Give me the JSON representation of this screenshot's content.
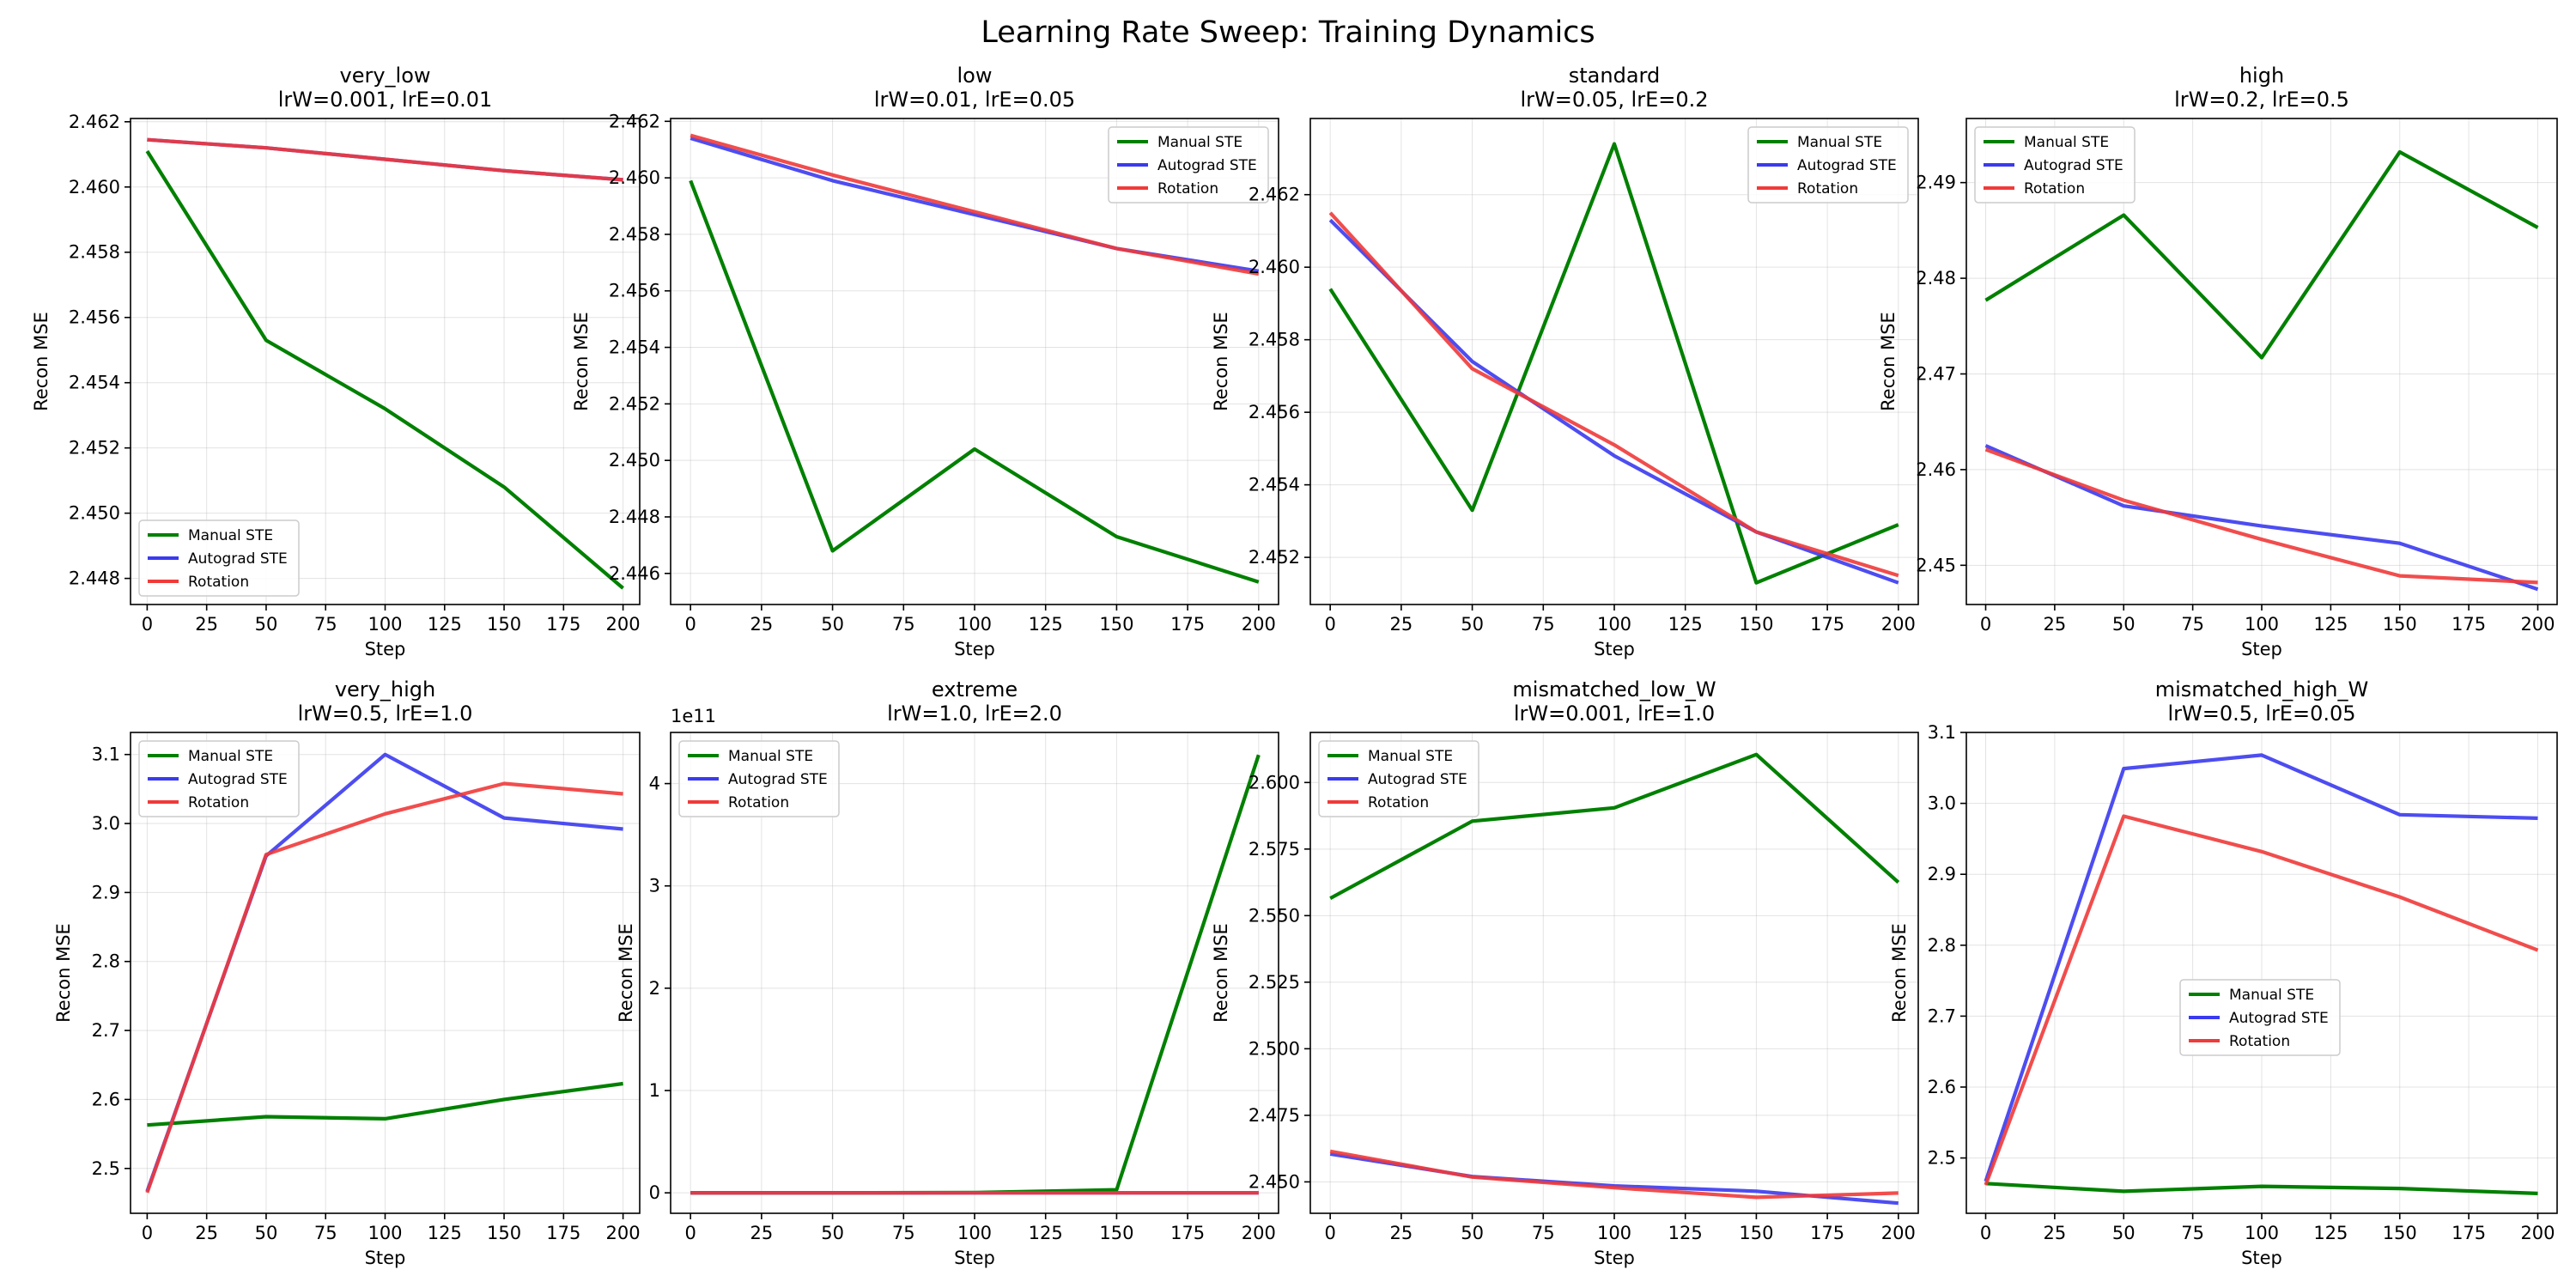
{
  "figure": {
    "title": "Learning Rate Sweep: Training Dynamics"
  },
  "colors": {
    "Manual STE": "#008000",
    "Autograd STE": "#3a3af0",
    "Rotation": "#f03a3a"
  },
  "chart_data": [
    {
      "type": "line",
      "title": "very_low",
      "subtitle": "lrW=0.001, lrE=0.01",
      "xlabel": "Step",
      "ylabel": "Recon MSE",
      "x": [
        0,
        50,
        100,
        150,
        200
      ],
      "xlim": [
        -7,
        207
      ],
      "ylim": [
        2.4472,
        2.4621
      ],
      "xticks": [
        0,
        25,
        50,
        75,
        100,
        125,
        150,
        175,
        200
      ],
      "yticks": [
        2.448,
        2.45,
        2.452,
        2.454,
        2.456,
        2.458,
        2.46,
        2.462
      ],
      "ytick_labels": [
        "2.448",
        "2.450",
        "2.452",
        "2.454",
        "2.456",
        "2.458",
        "2.460",
        "2.462"
      ],
      "legend": "lower-left",
      "series": [
        {
          "name": "Manual STE",
          "values": [
            2.4611,
            2.4553,
            2.4532,
            2.4508,
            2.4477
          ]
        },
        {
          "name": "Autograd STE",
          "values": [
            2.46145,
            2.4612,
            2.46085,
            2.4605,
            2.46022
          ]
        },
        {
          "name": "Rotation",
          "values": [
            2.46145,
            2.4612,
            2.46085,
            2.4605,
            2.46022
          ]
        }
      ]
    },
    {
      "type": "line",
      "title": "low",
      "subtitle": "lrW=0.01, lrE=0.05",
      "xlabel": "Step",
      "ylabel": "Recon MSE",
      "x": [
        0,
        50,
        100,
        150,
        200
      ],
      "xlim": [
        -7,
        207
      ],
      "ylim": [
        2.4449,
        2.4621
      ],
      "xticks": [
        0,
        25,
        50,
        75,
        100,
        125,
        150,
        175,
        200
      ],
      "yticks": [
        2.446,
        2.448,
        2.45,
        2.452,
        2.454,
        2.456,
        2.458,
        2.46,
        2.462
      ],
      "ytick_labels": [
        "2.446",
        "2.448",
        "2.450",
        "2.452",
        "2.454",
        "2.456",
        "2.458",
        "2.460",
        "2.462"
      ],
      "legend": "upper-right",
      "series": [
        {
          "name": "Manual STE",
          "values": [
            2.4599,
            2.4468,
            2.4504,
            2.4473,
            2.4457
          ]
        },
        {
          "name": "Autograd STE",
          "values": [
            2.4614,
            2.4599,
            2.4587,
            2.4575,
            2.4567
          ]
        },
        {
          "name": "Rotation",
          "values": [
            2.4615,
            2.4601,
            2.4588,
            2.4575,
            2.4566
          ]
        }
      ]
    },
    {
      "type": "line",
      "title": "standard",
      "subtitle": "lrW=0.05, lrE=0.2",
      "xlabel": "Step",
      "ylabel": "Recon MSE",
      "x": [
        0,
        50,
        100,
        150,
        200
      ],
      "xlim": [
        -7,
        207
      ],
      "ylim": [
        2.4507,
        2.4641
      ],
      "xticks": [
        0,
        25,
        50,
        75,
        100,
        125,
        150,
        175,
        200
      ],
      "yticks": [
        2.452,
        2.454,
        2.456,
        2.458,
        2.46,
        2.462
      ],
      "ytick_labels": [
        "2.452",
        "2.454",
        "2.456",
        "2.458",
        "2.460",
        "2.462"
      ],
      "legend": "upper-right",
      "series": [
        {
          "name": "Manual STE",
          "values": [
            2.4594,
            2.4533,
            2.4634,
            2.4513,
            2.4529
          ]
        },
        {
          "name": "Autograd STE",
          "values": [
            2.4613,
            2.4574,
            2.4548,
            2.4527,
            2.4513
          ]
        },
        {
          "name": "Rotation",
          "values": [
            2.4615,
            2.4572,
            2.4551,
            2.4527,
            2.4515
          ]
        }
      ]
    },
    {
      "type": "line",
      "title": "high",
      "subtitle": "lrW=0.2, lrE=0.5",
      "xlabel": "Step",
      "ylabel": "Recon MSE",
      "x": [
        0,
        50,
        100,
        150,
        200
      ],
      "xlim": [
        -7,
        207
      ],
      "ylim": [
        2.4459,
        2.4967
      ],
      "xticks": [
        0,
        25,
        50,
        75,
        100,
        125,
        150,
        175,
        200
      ],
      "yticks": [
        2.45,
        2.46,
        2.47,
        2.48,
        2.49
      ],
      "ytick_labels": [
        "2.45",
        "2.46",
        "2.47",
        "2.48",
        "2.49"
      ],
      "legend": "upper-left",
      "series": [
        {
          "name": "Manual STE",
          "values": [
            2.4777,
            2.4866,
            2.4717,
            2.4932,
            2.4853
          ]
        },
        {
          "name": "Autograd STE",
          "values": [
            2.4625,
            2.4562,
            2.4541,
            2.4523,
            2.4475
          ]
        },
        {
          "name": "Rotation",
          "values": [
            2.4621,
            2.4568,
            2.4527,
            2.4489,
            2.4482
          ]
        }
      ]
    },
    {
      "type": "line",
      "title": "very_high",
      "subtitle": "lrW=0.5, lrE=1.0",
      "xlabel": "Step",
      "ylabel": "Recon MSE",
      "x": [
        0,
        50,
        100,
        150,
        200
      ],
      "xlim": [
        -7,
        207
      ],
      "ylim": [
        2.435,
        3.132
      ],
      "xticks": [
        0,
        25,
        50,
        75,
        100,
        125,
        150,
        175,
        200
      ],
      "yticks": [
        2.5,
        2.6,
        2.7,
        2.8,
        2.9,
        3.0,
        3.1
      ],
      "ytick_labels": [
        "2.5",
        "2.6",
        "2.7",
        "2.8",
        "2.9",
        "3.0",
        "3.1"
      ],
      "legend": "upper-left",
      "series": [
        {
          "name": "Manual STE",
          "values": [
            2.563,
            2.575,
            2.572,
            2.6,
            2.623
          ]
        },
        {
          "name": "Autograd STE",
          "values": [
            2.467,
            2.953,
            3.1,
            3.008,
            2.992
          ]
        },
        {
          "name": "Rotation",
          "values": [
            2.465,
            2.955,
            3.014,
            3.058,
            3.043
          ]
        }
      ]
    },
    {
      "type": "line",
      "title": "extreme",
      "subtitle": "lrW=1.0, lrE=2.0",
      "xlabel": "Step",
      "ylabel": "Recon MSE",
      "x": [
        0,
        50,
        100,
        150,
        200
      ],
      "xlim": [
        -7,
        207
      ],
      "ylim": [
        -0.2,
        4.5
      ],
      "y_scale_label": "1e11",
      "xticks": [
        0,
        25,
        50,
        75,
        100,
        125,
        150,
        175,
        200
      ],
      "yticks": [
        0,
        1,
        2,
        3,
        4
      ],
      "ytick_labels": [
        "0",
        "1",
        "2",
        "3",
        "4"
      ],
      "legend": "upper-left",
      "series": [
        {
          "name": "Manual STE",
          "values": [
            0,
            0,
            0.002,
            0.03,
            4.28
          ]
        },
        {
          "name": "Autograd STE",
          "values": [
            0,
            0,
            0,
            0,
            0
          ]
        },
        {
          "name": "Rotation",
          "values": [
            0,
            0,
            0,
            0,
            0
          ]
        }
      ]
    },
    {
      "type": "line",
      "title": "mismatched_low_W",
      "subtitle": "lrW=0.001, lrE=1.0",
      "xlabel": "Step",
      "ylabel": "Recon MSE",
      "x": [
        0,
        50,
        100,
        150,
        200
      ],
      "xlim": [
        -7,
        207
      ],
      "ylim": [
        2.4382,
        2.6188
      ],
      "xticks": [
        0,
        25,
        50,
        75,
        100,
        125,
        150,
        175,
        200
      ],
      "yticks": [
        2.45,
        2.475,
        2.5,
        2.525,
        2.55,
        2.575,
        2.6
      ],
      "ytick_labels": [
        "2.450",
        "2.475",
        "2.500",
        "2.525",
        "2.550",
        "2.575",
        "2.600"
      ],
      "legend": "upper-left",
      "series": [
        {
          "name": "Manual STE",
          "values": [
            2.5565,
            2.5855,
            2.5905,
            2.6105,
            2.5625
          ]
        },
        {
          "name": "Autograd STE",
          "values": [
            2.4605,
            2.452,
            2.4485,
            2.4465,
            2.442
          ]
        },
        {
          "name": "Rotation",
          "values": [
            2.4615,
            2.4518,
            2.4478,
            2.4442,
            2.4458
          ]
        }
      ]
    },
    {
      "type": "line",
      "title": "mismatched_high_W",
      "subtitle": "lrW=0.5, lrE=0.05",
      "xlabel": "Step",
      "ylabel": "Recon MSE",
      "x": [
        0,
        50,
        100,
        150,
        200
      ],
      "xlim": [
        -7,
        207
      ],
      "ylim": [
        2.422,
        3.1
      ],
      "xticks": [
        0,
        25,
        50,
        75,
        100,
        125,
        150,
        175,
        200
      ],
      "yticks": [
        2.5,
        2.6,
        2.7,
        2.8,
        2.9,
        3.0,
        3.1
      ],
      "ytick_labels": [
        "2.5",
        "2.6",
        "2.7",
        "2.8",
        "2.9",
        "3.0",
        "3.1"
      ],
      "legend": "center",
      "series": [
        {
          "name": "Manual STE",
          "values": [
            2.464,
            2.453,
            2.46,
            2.457,
            2.45
          ]
        },
        {
          "name": "Autograd STE",
          "values": [
            2.467,
            3.049,
            3.068,
            2.984,
            2.979
          ]
        },
        {
          "name": "Rotation",
          "values": [
            2.462,
            2.982,
            2.932,
            2.868,
            2.793
          ]
        }
      ]
    }
  ]
}
